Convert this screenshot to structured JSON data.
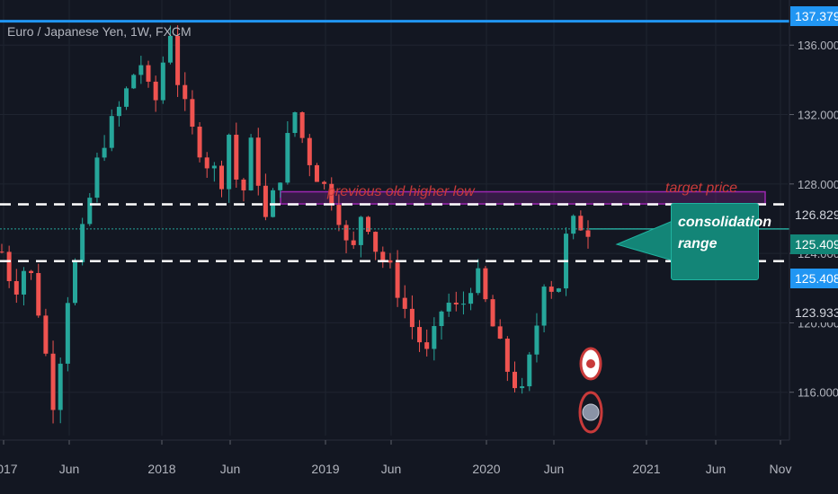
{
  "header": {
    "symbol_title": "Euro / Japanese Yen, 1W, FXCM"
  },
  "annotations": {
    "previous_high": "previous old higher low",
    "target_price": "target price",
    "consolidation": "consolidation range"
  },
  "colors": {
    "background": "#131722",
    "grid": "#1f2430",
    "up_candle": "#26a69a",
    "down_candle": "#ef5350",
    "accent_blue": "#2196f3",
    "zone_purple": "#9c27b0",
    "callout_teal": "#138577",
    "annotation_red": "#c83a3a",
    "dash_white": "#ffffff"
  },
  "chart_data": {
    "type": "candlestick",
    "title": "Euro / Japanese Yen, 1W, FXCM",
    "y_axis_ticks": [
      "116.000",
      "120.000",
      "124.000",
      "128.000",
      "132.000",
      "136.000"
    ],
    "ylim": [
      113.5,
      138.6
    ],
    "x_axis_ticks": [
      "2017",
      "Jun",
      "2018",
      "Jun",
      "2019",
      "Jun",
      "2020",
      "Jun",
      "2021",
      "Jun",
      "Nov"
    ],
    "price_labels": [
      {
        "value": "137.379",
        "style": "blue"
      },
      {
        "value": "126.829",
        "style": "dark"
      },
      {
        "value": "125.409",
        "style": "teal"
      },
      {
        "value": "125.408",
        "style": "blue"
      },
      {
        "value": "123.933",
        "style": "dark"
      }
    ],
    "horizontal_lines": [
      {
        "name": "resistance-top",
        "price": 137.379,
        "style": "solid-blue"
      },
      {
        "name": "consolidation-upper",
        "price": 126.829,
        "style": "dashed-white"
      },
      {
        "name": "consolidation-lower",
        "price": 123.55,
        "style": "dashed-white"
      },
      {
        "name": "last-price",
        "price": 125.409,
        "style": "dotted-teal"
      }
    ],
    "target_zone": {
      "low": 126.85,
      "high": 127.55
    },
    "close_path": [
      [
        0,
        124.1
      ],
      [
        1.5,
        121.8
      ],
      [
        3.2,
        123.6
      ],
      [
        4.6,
        120.6
      ],
      [
        6.6,
        114.8
      ],
      [
        7.8,
        120.8
      ],
      [
        9.8,
        124.7
      ],
      [
        12.2,
        130.1
      ],
      [
        14.6,
        132.4
      ],
      [
        17.1,
        135.2
      ],
      [
        18.8,
        132.2
      ],
      [
        20.8,
        137.1
      ],
      [
        21.6,
        134.3
      ],
      [
        23.2,
        131.4
      ],
      [
        25.3,
        129.3
      ],
      [
        27.4,
        128.2
      ],
      [
        28.1,
        131.0
      ],
      [
        29.6,
        126.7
      ],
      [
        31.0,
        130.6
      ],
      [
        32.6,
        125.8
      ],
      [
        34.5,
        128.6
      ],
      [
        36.2,
        132.3
      ],
      [
        37.8,
        129.7
      ],
      [
        39.4,
        128.2
      ],
      [
        41.4,
        126.9
      ],
      [
        43.2,
        123.4
      ],
      [
        44.7,
        126.8
      ],
      [
        46.3,
        124.3
      ],
      [
        48.0,
        123.1
      ],
      [
        50.5,
        120.1
      ],
      [
        52.8,
        118.0
      ],
      [
        54.8,
        121.3
      ],
      [
        56.7,
        120.6
      ],
      [
        58.7,
        123.0
      ],
      [
        60.7,
        119.9
      ],
      [
        62.7,
        117.2
      ],
      [
        64.5,
        115.8
      ],
      [
        66.2,
        119.8
      ],
      [
        67.4,
        123.3
      ],
      [
        68.6,
        121.1
      ],
      [
        70.1,
        125.5
      ],
      [
        71.2,
        125.8
      ],
      [
        72.6,
        125.4
      ]
    ],
    "markers": [
      {
        "type": "red-dot-circle",
        "date_offset": 65.9,
        "price": 118.5
      },
      {
        "type": "hatched-circle",
        "date_offset": 65.9,
        "price": 116.0
      }
    ]
  }
}
